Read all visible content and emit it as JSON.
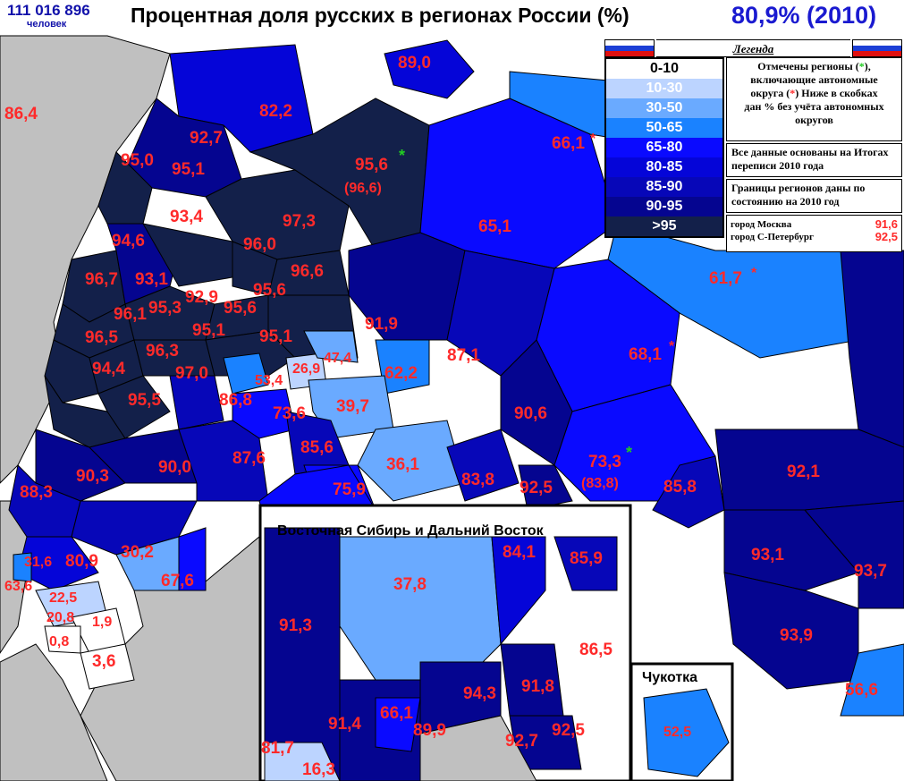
{
  "header": {
    "population": "111 016 896",
    "population_unit": "человек",
    "title": "Процентная доля русских в регионах России (%)",
    "share": "80,9% (2010)"
  },
  "legend": {
    "title": "Легенда",
    "classes": [
      {
        "label": "0-10",
        "color": "#ffffff",
        "text": "#000000"
      },
      {
        "label": "10-30",
        "color": "#bcd4ff",
        "text": "#ffffff"
      },
      {
        "label": "30-50",
        "color": "#6aaaff",
        "text": "#ffffff"
      },
      {
        "label": "50-65",
        "color": "#1a82ff",
        "text": "#ffffff"
      },
      {
        "label": "65-80",
        "color": "#0a0aff",
        "text": "#ffffff"
      },
      {
        "label": "80-85",
        "color": "#0505d8",
        "text": "#ffffff"
      },
      {
        "label": "85-90",
        "color": "#0707b8",
        "text": "#ffffff"
      },
      {
        "label": "90-95",
        "color": "#050590",
        "text": "#ffffff"
      },
      {
        "label": ">95",
        "color": "#13204a",
        "text": "#ffffff"
      }
    ],
    "note_autonomous_a": "Отмечены регионы",
    "note_autonomous_mark_open": "(",
    "note_autonomous_mark": "*",
    "note_autonomous_mark_close": "),",
    "note_autonomous_b": "включающие автономные",
    "note_autonomous_c": "округа",
    "note_autonomous_d": "Ниже в скобках",
    "note_autonomous_e": "дан % без учёта автономных",
    "note_autonomous_f": "округов",
    "note_census": "Все данные основаны на Итогах переписи 2010 года",
    "note_borders": "Границы регионов даны по состоянию на 2010 год",
    "cities": [
      {
        "name": "город Москва",
        "value": "91,6"
      },
      {
        "name": "город С-Петербург",
        "value": "92,5"
      }
    ]
  },
  "regions": [
    "86,4",
    "89,0",
    "82,2",
    "92,7",
    "95,0",
    "95,1",
    "95,6",
    "(96,6)",
    "66,1",
    "93,4",
    "97,3",
    "65,1",
    "94,6",
    "96,0",
    "96,7",
    "93,1",
    "96,6",
    "95,6",
    "92,9",
    "96,1",
    "95,3",
    "95,6",
    "61,7",
    "96,5",
    "95,1",
    "95,1",
    "91,9",
    "68,1",
    "96,3",
    "94,4",
    "97,0",
    "53,4",
    "26,9",
    "47,4",
    "62,2",
    "87,1",
    "95,5",
    "86,8",
    "73,6",
    "39,7",
    "90,6",
    "85,6",
    "90,3",
    "90,0",
    "87,6",
    "36,1",
    "73,3",
    "(83,8)",
    "92,1",
    "88,3",
    "75,9",
    "83,8",
    "92,5",
    "85,8",
    "31,6",
    "80,9",
    "30,2",
    "93,1",
    "63,6",
    "67,6",
    "93,7",
    "22,5",
    "20,8",
    "1,9",
    "0,8",
    "93,9",
    "3,6",
    "56,6"
  ],
  "inset_siberia": {
    "title": "Восточная Сибирь и Дальний Восток",
    "regions": [
      "37,8",
      "84,1",
      "85,9",
      "91,3",
      "86,5",
      "94,3",
      "91,8",
      "91,4",
      "66,1",
      "89,9",
      "92,7",
      "92,5",
      "81,7",
      "16,3"
    ]
  },
  "inset_chukotka": {
    "title": "Чукотка",
    "regions": [
      "52,5"
    ]
  }
}
